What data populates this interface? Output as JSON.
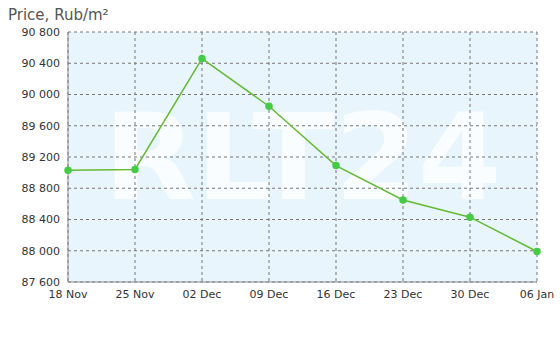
{
  "chart_data": {
    "type": "line",
    "title": "Price, Rub/m²",
    "watermark": "RLT24",
    "categories": [
      "18 Nov",
      "25 Nov",
      "02 Dec",
      "09 Dec",
      "16 Dec",
      "23 Dec",
      "30 Dec",
      "06 Jan"
    ],
    "values": [
      89030,
      89040,
      90460,
      89850,
      89090,
      88650,
      88430,
      87990
    ],
    "color": "#66bb33",
    "marker": "circle",
    "ylim": [
      87600,
      90800
    ],
    "yticks": [
      {
        "value": 87600,
        "label": "87 600"
      },
      {
        "value": 88000,
        "label": "88 000"
      },
      {
        "value": 88400,
        "label": "88 400"
      },
      {
        "value": 88800,
        "label": "88 800"
      },
      {
        "value": 89200,
        "label": "89 200"
      },
      {
        "value": 89600,
        "label": "89 600"
      },
      {
        "value": 90000,
        "label": "90 000"
      },
      {
        "value": 90400,
        "label": "90 400"
      },
      {
        "value": 90800,
        "label": "90 800"
      }
    ],
    "grid": true
  }
}
